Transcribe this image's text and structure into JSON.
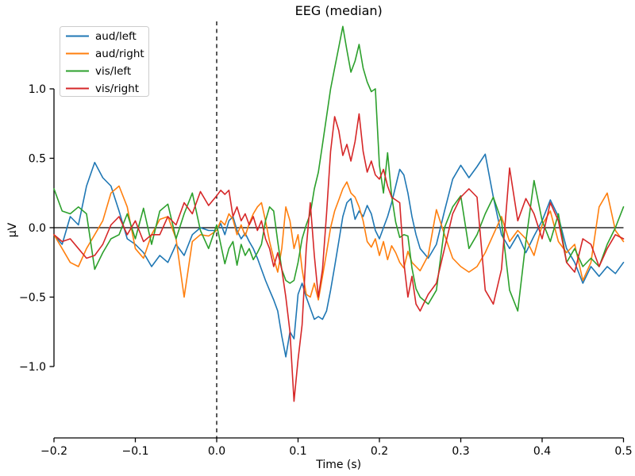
{
  "chart_data": {
    "type": "line",
    "title": "EEG (median)",
    "xlabel": "Time (s)",
    "ylabel": "µV",
    "xlim": [
      -0.2,
      0.5
    ],
    "ylim": [
      -1.35,
      1.55
    ],
    "grid": false,
    "legend_position": "upper left",
    "annotations": {
      "vline_dashed_at_x": 0.0,
      "hline_solid_at_y": 0.0
    },
    "xticks": {
      "values": [
        -0.2,
        -0.1,
        0.0,
        0.1,
        0.2,
        0.3,
        0.4,
        0.5
      ],
      "labels": [
        "−0.2",
        "−0.1",
        "0.0",
        "0.1",
        "0.2",
        "0.3",
        "0.4",
        "0.5"
      ]
    },
    "yticks": {
      "values": [
        1.0,
        0.5,
        0.0,
        -0.5,
        -1.0
      ],
      "labels": [
        "1.0",
        "0.5",
        "0.0",
        "−0.5",
        "−1.0"
      ]
    },
    "x": [
      -0.2,
      -0.19,
      -0.18,
      -0.17,
      -0.16,
      -0.15,
      -0.14,
      -0.13,
      -0.12,
      -0.11,
      -0.1,
      -0.09,
      -0.08,
      -0.07,
      -0.06,
      -0.05,
      -0.04,
      -0.03,
      -0.02,
      -0.01,
      0,
      0.005,
      0.01,
      0.015,
      0.02,
      0.025,
      0.03,
      0.035,
      0.04,
      0.045,
      0.05,
      0.055,
      0.06,
      0.065,
      0.07,
      0.075,
      0.08,
      0.085,
      0.09,
      0.095,
      0.1,
      0.105,
      0.11,
      0.115,
      0.12,
      0.125,
      0.13,
      0.135,
      0.14,
      0.145,
      0.15,
      0.155,
      0.16,
      0.165,
      0.17,
      0.175,
      0.18,
      0.185,
      0.19,
      0.195,
      0.2,
      0.205,
      0.21,
      0.215,
      0.22,
      0.225,
      0.23,
      0.235,
      0.24,
      0.245,
      0.25,
      0.26,
      0.27,
      0.28,
      0.29,
      0.3,
      0.31,
      0.32,
      0.33,
      0.34,
      0.35,
      0.36,
      0.37,
      0.38,
      0.39,
      0.4,
      0.41,
      0.42,
      0.43,
      0.44,
      0.45,
      0.46,
      0.47,
      0.48,
      0.49,
      0.5
    ],
    "series": [
      {
        "name": "aud/left",
        "color": "#1f77b4",
        "values": [
          -0.05,
          -0.12,
          0.08,
          0.02,
          0.3,
          0.47,
          0.36,
          0.3,
          0.12,
          -0.08,
          -0.12,
          -0.18,
          -0.28,
          -0.2,
          -0.25,
          -0.12,
          -0.2,
          -0.05,
          0.0,
          -0.02,
          -0.02,
          0.03,
          -0.05,
          0.05,
          0.08,
          -0.02,
          -0.08,
          -0.04,
          -0.1,
          -0.15,
          -0.22,
          -0.3,
          -0.38,
          -0.45,
          -0.52,
          -0.6,
          -0.78,
          -0.93,
          -0.75,
          -0.8,
          -0.48,
          -0.4,
          -0.5,
          -0.58,
          -0.66,
          -0.64,
          -0.66,
          -0.6,
          -0.45,
          -0.28,
          -0.1,
          0.08,
          0.18,
          0.21,
          0.06,
          0.12,
          0.08,
          0.16,
          0.1,
          -0.02,
          -0.08,
          0.0,
          0.08,
          0.18,
          0.3,
          0.42,
          0.38,
          0.25,
          0.08,
          -0.05,
          -0.15,
          -0.22,
          -0.12,
          0.12,
          0.35,
          0.45,
          0.36,
          0.44,
          0.53,
          0.22,
          -0.05,
          -0.15,
          -0.05,
          -0.18,
          -0.06,
          0.05,
          0.2,
          0.08,
          -0.15,
          -0.25,
          -0.4,
          -0.28,
          -0.35,
          -0.28,
          -0.33,
          -0.25
        ]
      },
      {
        "name": "aud/right",
        "color": "#ff7f0e",
        "values": [
          -0.05,
          -0.15,
          -0.25,
          -0.28,
          -0.15,
          -0.05,
          0.05,
          0.25,
          0.3,
          0.15,
          -0.15,
          -0.22,
          -0.05,
          0.06,
          0.08,
          -0.08,
          -0.5,
          -0.1,
          -0.05,
          -0.06,
          -0.02,
          0.05,
          0.02,
          0.1,
          0.06,
          -0.05,
          0.02,
          -0.06,
          0.03,
          0.1,
          0.15,
          0.18,
          0.05,
          -0.1,
          -0.22,
          -0.32,
          -0.15,
          0.15,
          0.05,
          -0.15,
          -0.05,
          -0.3,
          -0.48,
          -0.5,
          -0.4,
          -0.52,
          -0.35,
          -0.18,
          0.0,
          0.12,
          0.2,
          0.28,
          0.33,
          0.25,
          0.22,
          0.15,
          0.05,
          -0.1,
          -0.14,
          -0.08,
          -0.2,
          -0.1,
          -0.23,
          -0.13,
          -0.18,
          -0.25,
          -0.29,
          -0.17,
          -0.25,
          -0.28,
          -0.31,
          -0.2,
          0.13,
          -0.05,
          -0.22,
          -0.28,
          -0.32,
          -0.28,
          -0.18,
          -0.05,
          0.08,
          -0.1,
          -0.02,
          -0.08,
          -0.2,
          0.02,
          0.12,
          -0.1,
          -0.18,
          -0.12,
          -0.38,
          -0.25,
          0.15,
          0.25,
          -0.02,
          -0.1
        ]
      },
      {
        "name": "vis/left",
        "color": "#2ca02c",
        "values": [
          0.28,
          0.12,
          0.1,
          0.15,
          0.1,
          -0.3,
          -0.18,
          -0.08,
          -0.05,
          0.1,
          -0.08,
          0.14,
          -0.12,
          0.12,
          0.17,
          -0.08,
          0.1,
          0.25,
          -0.02,
          -0.15,
          0.02,
          -0.12,
          -0.26,
          -0.15,
          -0.1,
          -0.27,
          -0.12,
          -0.2,
          -0.15,
          -0.23,
          -0.18,
          -0.12,
          0.05,
          0.15,
          0.12,
          -0.1,
          -0.3,
          -0.38,
          -0.4,
          -0.38,
          -0.25,
          -0.08,
          0.02,
          0.1,
          0.28,
          0.4,
          0.6,
          0.8,
          1.0,
          1.15,
          1.3,
          1.45,
          1.28,
          1.12,
          1.2,
          1.32,
          1.15,
          1.05,
          0.98,
          1.0,
          0.45,
          0.25,
          0.54,
          0.23,
          0.04,
          -0.07,
          -0.05,
          -0.06,
          -0.29,
          -0.44,
          -0.5,
          -0.55,
          -0.45,
          0.0,
          0.15,
          0.23,
          -0.15,
          -0.05,
          0.1,
          0.22,
          0.05,
          -0.45,
          -0.6,
          -0.1,
          0.34,
          0.05,
          -0.1,
          0.1,
          -0.25,
          -0.15,
          -0.28,
          -0.22,
          -0.28,
          -0.12,
          0.0,
          0.15
        ]
      },
      {
        "name": "vis/right",
        "color": "#d62728",
        "values": [
          -0.05,
          -0.1,
          -0.08,
          -0.15,
          -0.22,
          -0.2,
          -0.12,
          0.02,
          0.08,
          -0.05,
          0.05,
          -0.1,
          -0.05,
          -0.05,
          0.08,
          0.02,
          0.18,
          0.1,
          0.26,
          0.16,
          0.23,
          0.27,
          0.24,
          0.27,
          0.08,
          0.15,
          0.05,
          0.1,
          0.02,
          0.08,
          -0.02,
          0.05,
          -0.08,
          -0.15,
          -0.28,
          -0.18,
          -0.3,
          -0.5,
          -0.75,
          -1.25,
          -0.95,
          -0.7,
          -0.15,
          0.18,
          -0.2,
          -0.5,
          -0.3,
          0.1,
          0.55,
          0.8,
          0.7,
          0.52,
          0.6,
          0.48,
          0.62,
          0.82,
          0.55,
          0.4,
          0.48,
          0.38,
          0.35,
          0.42,
          0.3,
          0.22,
          0.2,
          0.18,
          -0.25,
          -0.5,
          -0.35,
          -0.55,
          -0.6,
          -0.48,
          -0.4,
          -0.15,
          0.1,
          0.22,
          0.28,
          0.22,
          -0.45,
          -0.55,
          -0.3,
          0.43,
          0.05,
          0.21,
          0.1,
          -0.08,
          0.18,
          0.05,
          -0.25,
          -0.32,
          -0.08,
          -0.12,
          -0.28,
          -0.15,
          -0.05,
          -0.08
        ]
      }
    ],
    "colors": {
      "axis": "#000000",
      "background": "#ffffff",
      "legend_border": "#cccccc"
    }
  }
}
